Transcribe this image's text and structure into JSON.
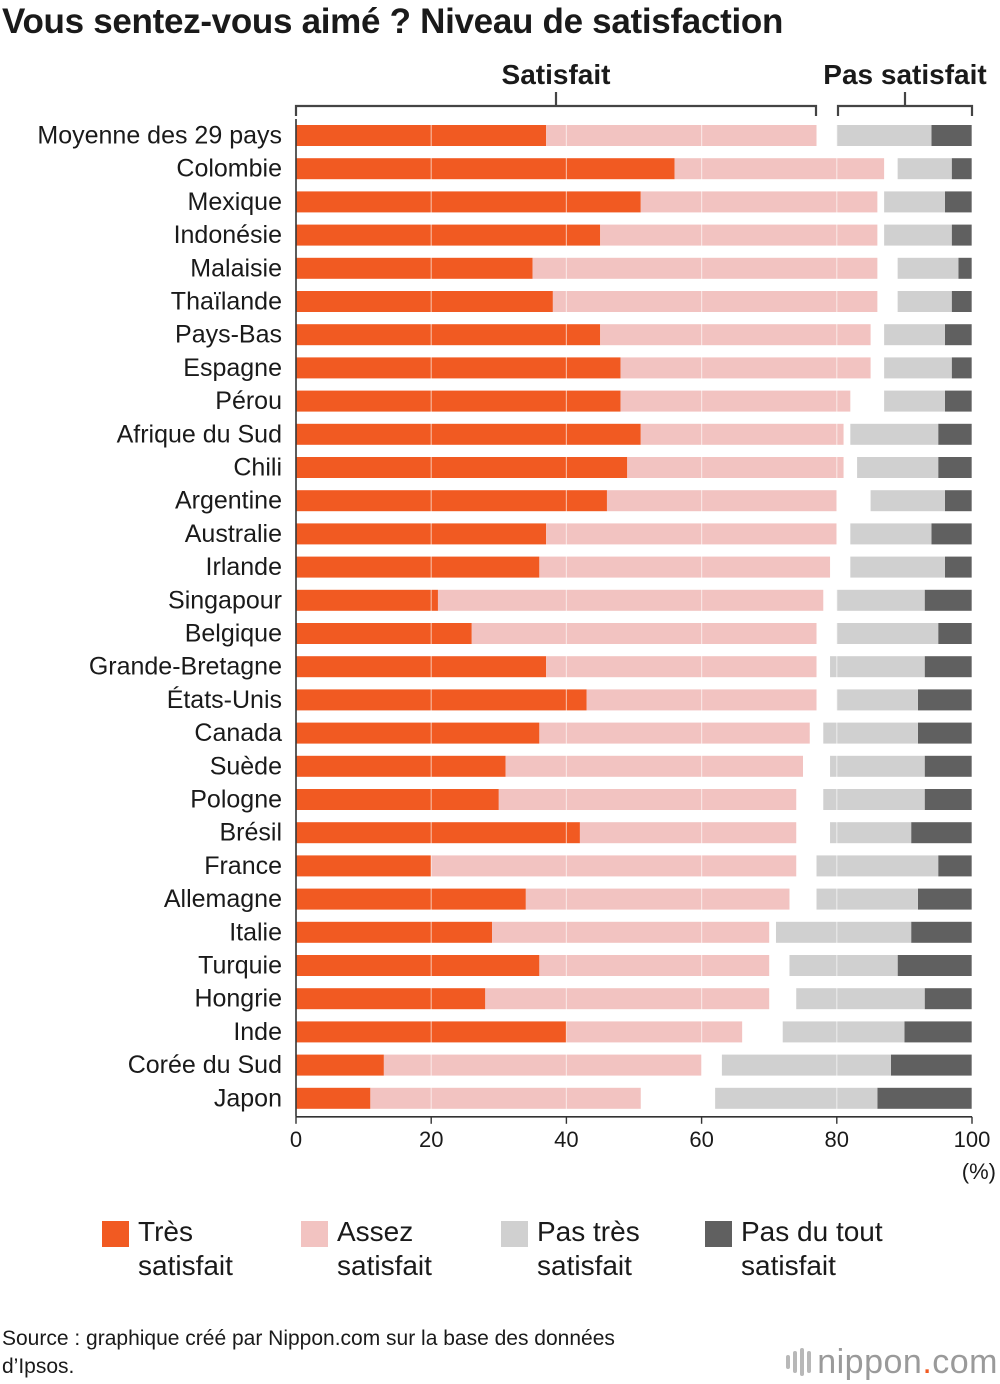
{
  "title": "Vous sentez-vous aimé ? Niveau de satisfaction",
  "chart_data": {
    "type": "stacked-bar-horizontal",
    "title": "Vous sentez-vous aimé ? Niveau de satisfaction",
    "group_labels": {
      "satisfied": "Satisfait",
      "not_satisfied": "Pas satisfait"
    },
    "x_ticks": [
      "0",
      "20",
      "40",
      "60",
      "80",
      "100"
    ],
    "x_unit": "(%)",
    "xlim": [
      0,
      100
    ],
    "categories": [
      "Moyenne des 29 pays",
      "Colombie",
      "Mexique",
      "Indonésie",
      "Malaisie",
      "Thaïlande",
      "Pays-Bas",
      "Espagne",
      "Pérou",
      "Afrique du Sud",
      "Chili",
      "Argentine",
      "Australie",
      "Irlande",
      "Singapour",
      "Belgique",
      "Grande-Bretagne",
      "États-Unis",
      "Canada",
      "Suède",
      "Pologne",
      "Brésil",
      "France",
      "Allemagne",
      "Italie",
      "Turquie",
      "Hongrie",
      "Inde",
      "Corée du Sud",
      "Japon"
    ],
    "series": [
      {
        "name": "Très satisfait",
        "color": "#f15a22",
        "values": [
          37,
          56,
          51,
          45,
          35,
          38,
          45,
          48,
          48,
          51,
          49,
          46,
          37,
          36,
          21,
          26,
          37,
          43,
          36,
          31,
          30,
          42,
          20,
          34,
          29,
          36,
          28,
          40,
          13,
          11
        ]
      },
      {
        "name": "Assez satisfait",
        "color": "#f2c3c1",
        "values": [
          40,
          31,
          35,
          41,
          51,
          48,
          40,
          37,
          34,
          30,
          32,
          34,
          43,
          43,
          57,
          51,
          40,
          34,
          40,
          44,
          44,
          32,
          54,
          39,
          41,
          34,
          42,
          26,
          47,
          40
        ]
      },
      {
        "name": "Pas très satisfait",
        "color": "#d0d0d0",
        "values": [
          14,
          8,
          9,
          10,
          9,
          8,
          9,
          10,
          9,
          13,
          12,
          11,
          12,
          14,
          13,
          15,
          14,
          12,
          14,
          14,
          15,
          12,
          18,
          15,
          20,
          16,
          19,
          18,
          25,
          24
        ]
      },
      {
        "name": "Pas du tout satisfait",
        "color": "#606060",
        "values": [
          6,
          3,
          4,
          3,
          2,
          3,
          4,
          3,
          4,
          5,
          5,
          4,
          6,
          4,
          7,
          5,
          7,
          8,
          8,
          7,
          7,
          9,
          5,
          8,
          9,
          11,
          7,
          10,
          12,
          14
        ]
      }
    ],
    "legend": [
      {
        "label": "Très\nsatisfait",
        "color": "#f15a22"
      },
      {
        "label": "Assez\nsatisfait",
        "color": "#f2c3c1"
      },
      {
        "label": "Pas très\nsatisfait",
        "color": "#d0d0d0"
      },
      {
        "label": "Pas du tout\nsatisfait",
        "color": "#606060"
      }
    ]
  },
  "source": "Source : graphique créé par Nippon.com sur la base des données d’Ipsos.",
  "logo": {
    "name": "nippon",
    "dot": ".",
    "suffix": "com"
  }
}
